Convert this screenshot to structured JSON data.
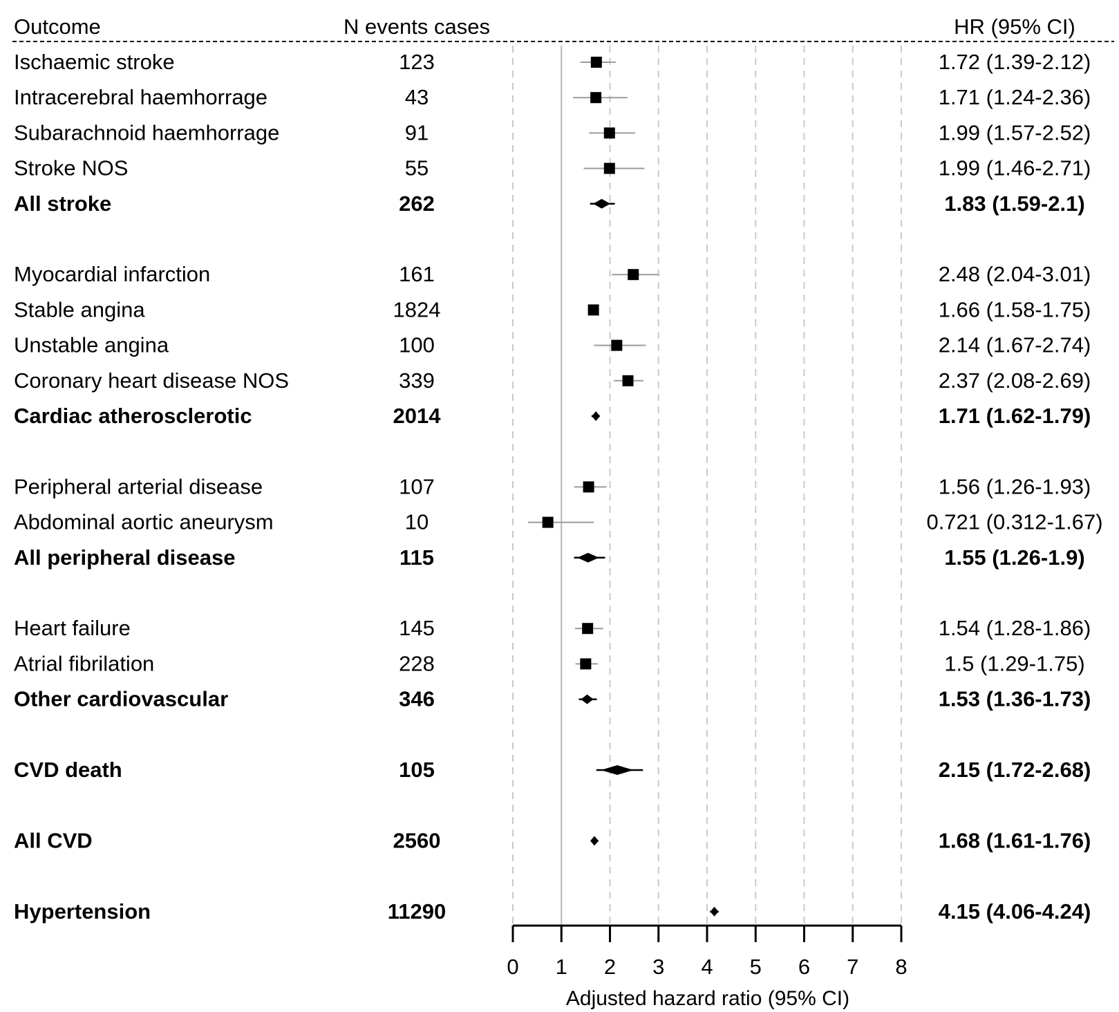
{
  "chart_data": {
    "type": "forest",
    "columns": {
      "outcome": "Outcome",
      "n_events": "N events cases",
      "hr": "HR (95% CI)"
    },
    "xlabel": "Adjusted hazard ratio (95% CI)",
    "xlim": [
      0,
      8
    ],
    "xticks": [
      "0",
      "1",
      "2",
      "3",
      "4",
      "5",
      "6",
      "7",
      "8"
    ],
    "reference_line": 1,
    "grid": "dashed-vertical",
    "rows": [
      {
        "outcome": "Ischaemic stroke",
        "n": "123",
        "hr_text": "1.72 (1.39-2.12)",
        "hr": 1.72,
        "lo": 1.39,
        "hi": 2.12,
        "summary": false
      },
      {
        "outcome": "Intracerebral haemhorrage",
        "n": "43",
        "hr_text": "1.71 (1.24-2.36)",
        "hr": 1.71,
        "lo": 1.24,
        "hi": 2.36,
        "summary": false
      },
      {
        "outcome": "Subarachnoid haemhorrage",
        "n": "91",
        "hr_text": "1.99 (1.57-2.52)",
        "hr": 1.99,
        "lo": 1.57,
        "hi": 2.52,
        "summary": false
      },
      {
        "outcome": "Stroke NOS",
        "n": "55",
        "hr_text": "1.99 (1.46-2.71)",
        "hr": 1.99,
        "lo": 1.46,
        "hi": 2.71,
        "summary": false
      },
      {
        "outcome": "All stroke",
        "n": "262",
        "hr_text": "1.83 (1.59-2.1)",
        "hr": 1.83,
        "lo": 1.59,
        "hi": 2.1,
        "summary": true
      },
      {
        "gap": true
      },
      {
        "outcome": "Myocardial infarction",
        "n": "161",
        "hr_text": "2.48 (2.04-3.01)",
        "hr": 2.48,
        "lo": 2.04,
        "hi": 3.01,
        "summary": false
      },
      {
        "outcome": "Stable angina",
        "n": "1824",
        "hr_text": "1.66 (1.58-1.75)",
        "hr": 1.66,
        "lo": 1.58,
        "hi": 1.75,
        "summary": false
      },
      {
        "outcome": "Unstable angina",
        "n": "100",
        "hr_text": "2.14 (1.67-2.74)",
        "hr": 2.14,
        "lo": 1.67,
        "hi": 2.74,
        "summary": false
      },
      {
        "outcome": "Coronary heart disease NOS",
        "n": "339",
        "hr_text": "2.37 (2.08-2.69)",
        "hr": 2.37,
        "lo": 2.08,
        "hi": 2.69,
        "summary": false
      },
      {
        "outcome": "Cardiac atherosclerotic",
        "n": "2014",
        "hr_text": "1.71 (1.62-1.79)",
        "hr": 1.71,
        "lo": 1.62,
        "hi": 1.79,
        "summary": true
      },
      {
        "gap": true
      },
      {
        "outcome": "Peripheral arterial disease",
        "n": "107",
        "hr_text": "1.56 (1.26-1.93)",
        "hr": 1.56,
        "lo": 1.26,
        "hi": 1.93,
        "summary": false
      },
      {
        "outcome": "Abdominal aortic aneurysm",
        "n": "10",
        "hr_text": "0.721 (0.312-1.67)",
        "hr": 0.721,
        "lo": 0.312,
        "hi": 1.67,
        "summary": false
      },
      {
        "outcome": "All peripheral disease",
        "n": "115",
        "hr_text": "1.55 (1.26-1.9)",
        "hr": 1.55,
        "lo": 1.26,
        "hi": 1.9,
        "summary": true
      },
      {
        "gap": true
      },
      {
        "outcome": "Heart failure",
        "n": "145",
        "hr_text": "1.54 (1.28-1.86)",
        "hr": 1.54,
        "lo": 1.28,
        "hi": 1.86,
        "summary": false
      },
      {
        "outcome": "Atrial fibrilation",
        "n": "228",
        "hr_text": "1.5 (1.29-1.75)",
        "hr": 1.5,
        "lo": 1.29,
        "hi": 1.75,
        "summary": false
      },
      {
        "outcome": "Other cardiovascular",
        "n": "346",
        "hr_text": "1.53 (1.36-1.73)",
        "hr": 1.53,
        "lo": 1.36,
        "hi": 1.73,
        "summary": true
      },
      {
        "gap": true
      },
      {
        "outcome": "CVD death",
        "n": "105",
        "hr_text": "2.15 (1.72-2.68)",
        "hr": 2.15,
        "lo": 1.72,
        "hi": 2.68,
        "summary": true
      },
      {
        "gap": true
      },
      {
        "outcome": "All CVD",
        "n": "2560",
        "hr_text": "1.68 (1.61-1.76)",
        "hr": 1.68,
        "lo": 1.61,
        "hi": 1.76,
        "summary": true
      },
      {
        "gap": true
      },
      {
        "outcome": "Hypertension",
        "n": "11290",
        "hr_text": "4.15 (4.06-4.24)",
        "hr": 4.15,
        "lo": 4.06,
        "hi": 4.24,
        "summary": true
      }
    ]
  }
}
